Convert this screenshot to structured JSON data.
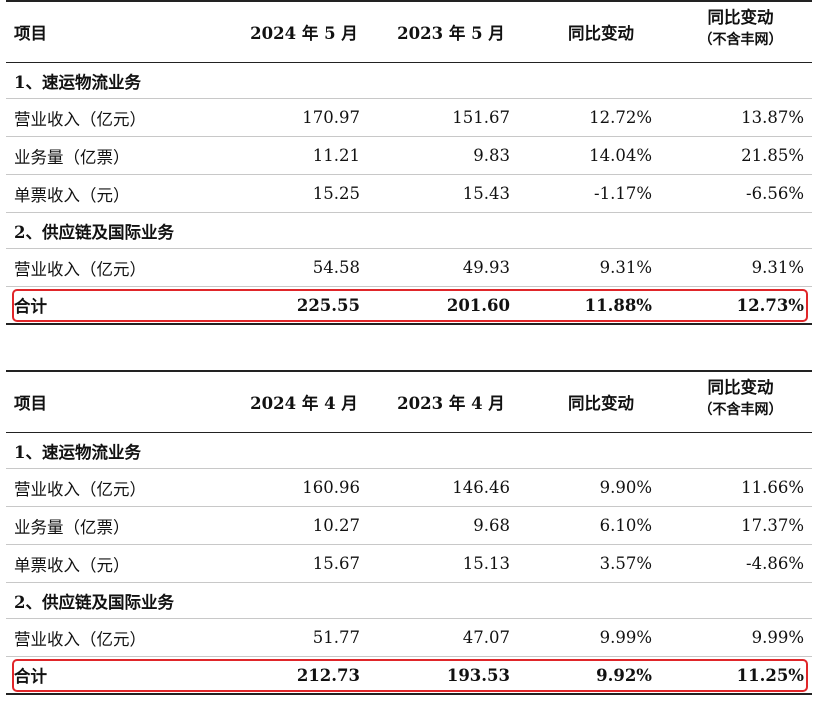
{
  "tables": [
    {
      "headers": {
        "item": "项目",
        "period_current": "2024 年 5 月",
        "period_prior": "2023 年 5 月",
        "yoy": "同比变动",
        "yoy_excl": "同比变动",
        "yoy_excl_note": "（不含丰网）"
      },
      "section1": "1、速运物流业务",
      "rows1": [
        {
          "label": "营业收入（亿元）",
          "v1": "170.97",
          "v2": "151.67",
          "v3": "12.72%",
          "v4": "13.87%"
        },
        {
          "label": "业务量（亿票）",
          "v1": "11.21",
          "v2": "9.83",
          "v3": "14.04%",
          "v4": "21.85%"
        },
        {
          "label": "单票收入（元）",
          "v1": "15.25",
          "v2": "15.43",
          "v3": "-1.17%",
          "v4": "-6.56%"
        }
      ],
      "section2": "2、供应链及国际业务",
      "rows2": [
        {
          "label": "营业收入（亿元）",
          "v1": "54.58",
          "v2": "49.93",
          "v3": "9.31%",
          "v4": "9.31%"
        }
      ],
      "total": {
        "label": "合计",
        "v1": "225.55",
        "v2": "201.60",
        "v3": "11.88%",
        "v4": "12.73%"
      }
    },
    {
      "headers": {
        "item": "项目",
        "period_current": "2024 年 4 月",
        "period_prior": "2023 年 4 月",
        "yoy": "同比变动",
        "yoy_excl": "同比变动",
        "yoy_excl_note": "（不含丰网）"
      },
      "section1": "1、速运物流业务",
      "rows1": [
        {
          "label": "营业收入（亿元）",
          "v1": "160.96",
          "v2": "146.46",
          "v3": "9.90%",
          "v4": "11.66%"
        },
        {
          "label": "业务量（亿票）",
          "v1": "10.27",
          "v2": "9.68",
          "v3": "6.10%",
          "v4": "17.37%"
        },
        {
          "label": "单票收入（元）",
          "v1": "15.67",
          "v2": "15.13",
          "v3": "3.57%",
          "v4": "-4.86%"
        }
      ],
      "section2": "2、供应链及国际业务",
      "rows2": [
        {
          "label": "营业收入（亿元）",
          "v1": "51.77",
          "v2": "47.07",
          "v3": "9.99%",
          "v4": "9.99%"
        }
      ],
      "total": {
        "label": "合计",
        "v1": "212.73",
        "v2": "193.53",
        "v3": "9.92%",
        "v4": "11.25%"
      }
    }
  ],
  "highlight_color": "#e0262a"
}
